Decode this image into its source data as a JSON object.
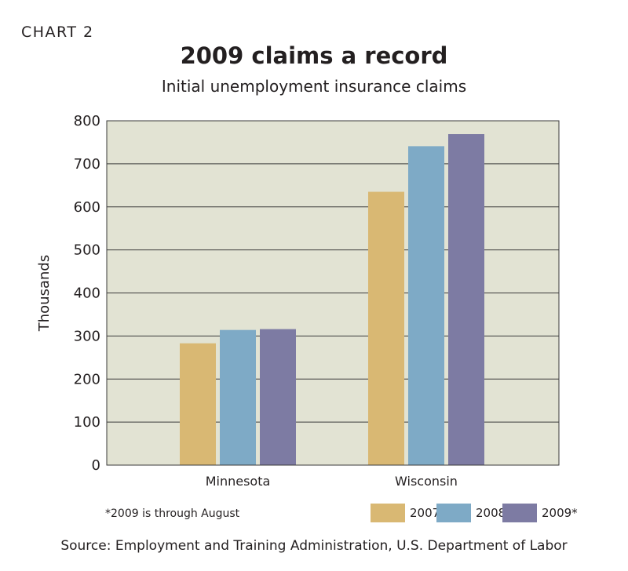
{
  "header": {
    "chart_label": "CHART 2"
  },
  "chart_data": {
    "type": "bar",
    "title": "2009 claims a record",
    "subtitle": "Initial unemployment insurance claims",
    "xlabel": "",
    "ylabel": "Thousands",
    "ylim": [
      0,
      800
    ],
    "yticks": [
      0,
      100,
      200,
      300,
      400,
      500,
      600,
      700,
      800
    ],
    "grid": true,
    "legend_placement": "bottom-right",
    "categories": [
      "Minnesota",
      "Wisconsin"
    ],
    "series": [
      {
        "name": "2007",
        "values": [
          283,
          635
        ],
        "color": "#d9b873"
      },
      {
        "name": "2008",
        "values": [
          314,
          741
        ],
        "color": "#7eaac6"
      },
      {
        "name": "2009*",
        "values": [
          316,
          769
        ],
        "color": "#7d7ba3"
      }
    ],
    "background_color": "#e2e3d3"
  },
  "footnote": "*2009 is through August",
  "source": "Source: Employment and Training Administration, U.S. Department of Labor"
}
